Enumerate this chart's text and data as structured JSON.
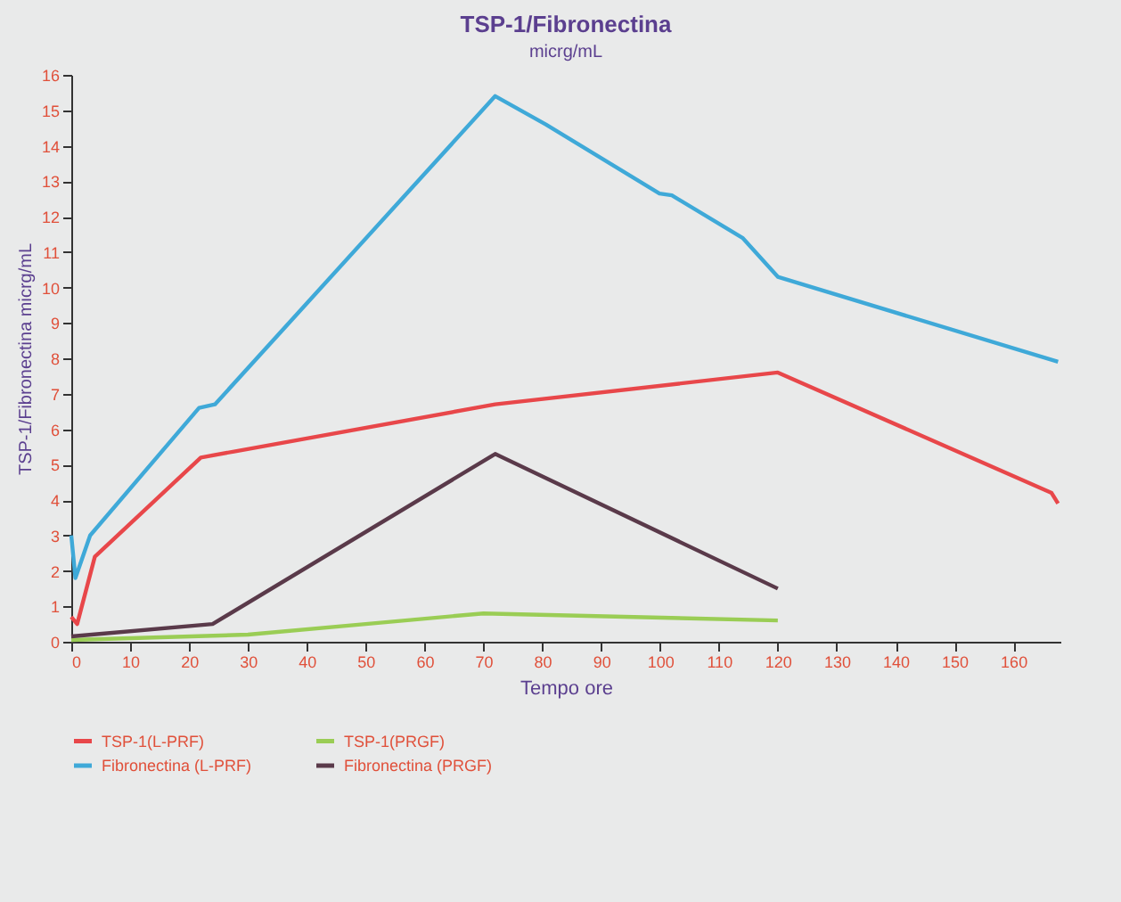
{
  "chart_data": {
    "type": "line",
    "title": "TSP-1/Fibronectina",
    "subtitle": "micrg/mL",
    "xlabel": "Tempo ore",
    "ylabel": "TSP-1/Fibronectina micrg/mL",
    "xlim": [
      0,
      168
    ],
    "xticks": [
      0,
      10,
      20,
      30,
      40,
      50,
      60,
      70,
      80,
      90,
      100,
      110,
      120,
      130,
      140,
      150,
      160
    ],
    "ylim": [
      0,
      16
    ],
    "yticks": [
      0,
      1,
      2,
      3,
      4,
      5,
      6,
      7,
      8,
      9,
      10,
      11,
      12,
      13,
      14,
      15,
      16
    ],
    "grid": false,
    "legend": "bottom",
    "marker": "none",
    "line_style": "solid",
    "series": [
      {
        "name": "TSP-1(L-PRF)",
        "color": "#e8474a",
        "x": [
          0,
          1,
          4,
          22,
          72,
          120,
          166.5,
          167.6
        ],
        "values": [
          0.7,
          0.5,
          2.4,
          5.2,
          6.7,
          7.6,
          4.2,
          3.9
        ]
      },
      {
        "name": "TSP-1(PRGF)",
        "color": "#9acd55",
        "x": [
          0,
          30,
          50,
          70,
          120
        ],
        "values": [
          0.05,
          0.2,
          0.5,
          0.8,
          0.6
        ]
      },
      {
        "name": "Fibronectina (L-PRF)",
        "color": "#3fa9d8",
        "x": [
          0,
          0.7,
          3.2,
          21.7,
          24.4,
          72,
          80.6,
          99.9,
          102,
          114,
          120,
          167.6
        ],
        "values": [
          3,
          1.8,
          3,
          6.6,
          6.7,
          15.4,
          14.6,
          12.65,
          12.6,
          11.4,
          10.3,
          7.9
        ]
      },
      {
        "name": "Fibronectina (PRGF)",
        "color": "#5a3a4a",
        "x": [
          0,
          24,
          72,
          120
        ],
        "values": [
          0.15,
          0.5,
          5.3,
          1.5
        ]
      }
    ]
  }
}
